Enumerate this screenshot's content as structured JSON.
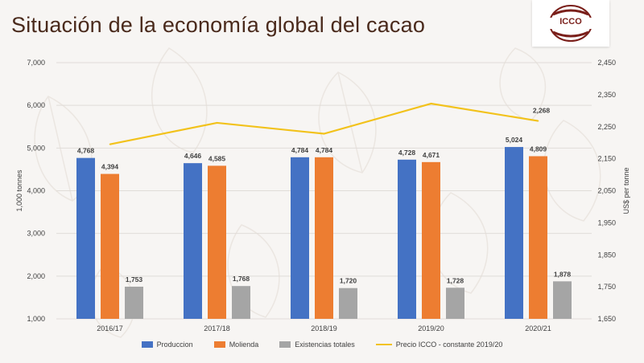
{
  "header": {
    "title": "Situación de la economía global del cacao",
    "logo_text": "ICCO"
  },
  "colors": {
    "produccion": "#4472c4",
    "molienda": "#ed7d31",
    "existencias": "#a5a5a5",
    "precio": "#f2c21b",
    "title": "#4a2a1c"
  },
  "chart_data": {
    "type": "bar",
    "categories": [
      "2016/17",
      "2017/18",
      "2018/19",
      "2019/20",
      "2020/21"
    ],
    "series": [
      {
        "name": "Produccion",
        "type": "bar",
        "axis": "left",
        "values": [
          4768,
          4646,
          4784,
          4728,
          5024
        ],
        "labels": [
          "4,768",
          "4,646",
          "4,784",
          "4,728",
          "5,024"
        ]
      },
      {
        "name": "Molienda",
        "type": "bar",
        "axis": "left",
        "values": [
          4394,
          4585,
          4784,
          4671,
          4809
        ],
        "labels": [
          "4,394",
          "4,585",
          "4,784",
          "4,671",
          "4,809"
        ]
      },
      {
        "name": "Existencias totales",
        "type": "bar",
        "axis": "left",
        "values": [
          1753,
          1768,
          1720,
          1728,
          1878
        ],
        "labels": [
          "1,753",
          "1,768",
          "1,720",
          "1,728",
          "1,878"
        ]
      },
      {
        "name": "Precio ICCO - constante 2019/20",
        "type": "line",
        "axis": "right",
        "values": [
          2195,
          2262,
          2228,
          2322,
          2268
        ],
        "last_label": "2,268"
      }
    ],
    "ylabel": "1,000 tonnes",
    "y2label": "US$ per tonne",
    "ylim": [
      1000,
      7000
    ],
    "y2lim": [
      1650,
      2450
    ],
    "yticks": [
      "1,000",
      "2,000",
      "3,000",
      "4,000",
      "5,000",
      "6,000",
      "7,000"
    ],
    "y2ticks": [
      "1,650",
      "1,750",
      "1,850",
      "1,950",
      "2,050",
      "2,150",
      "2,250",
      "2,350",
      "2,450"
    ],
    "legend_position": "bottom"
  }
}
